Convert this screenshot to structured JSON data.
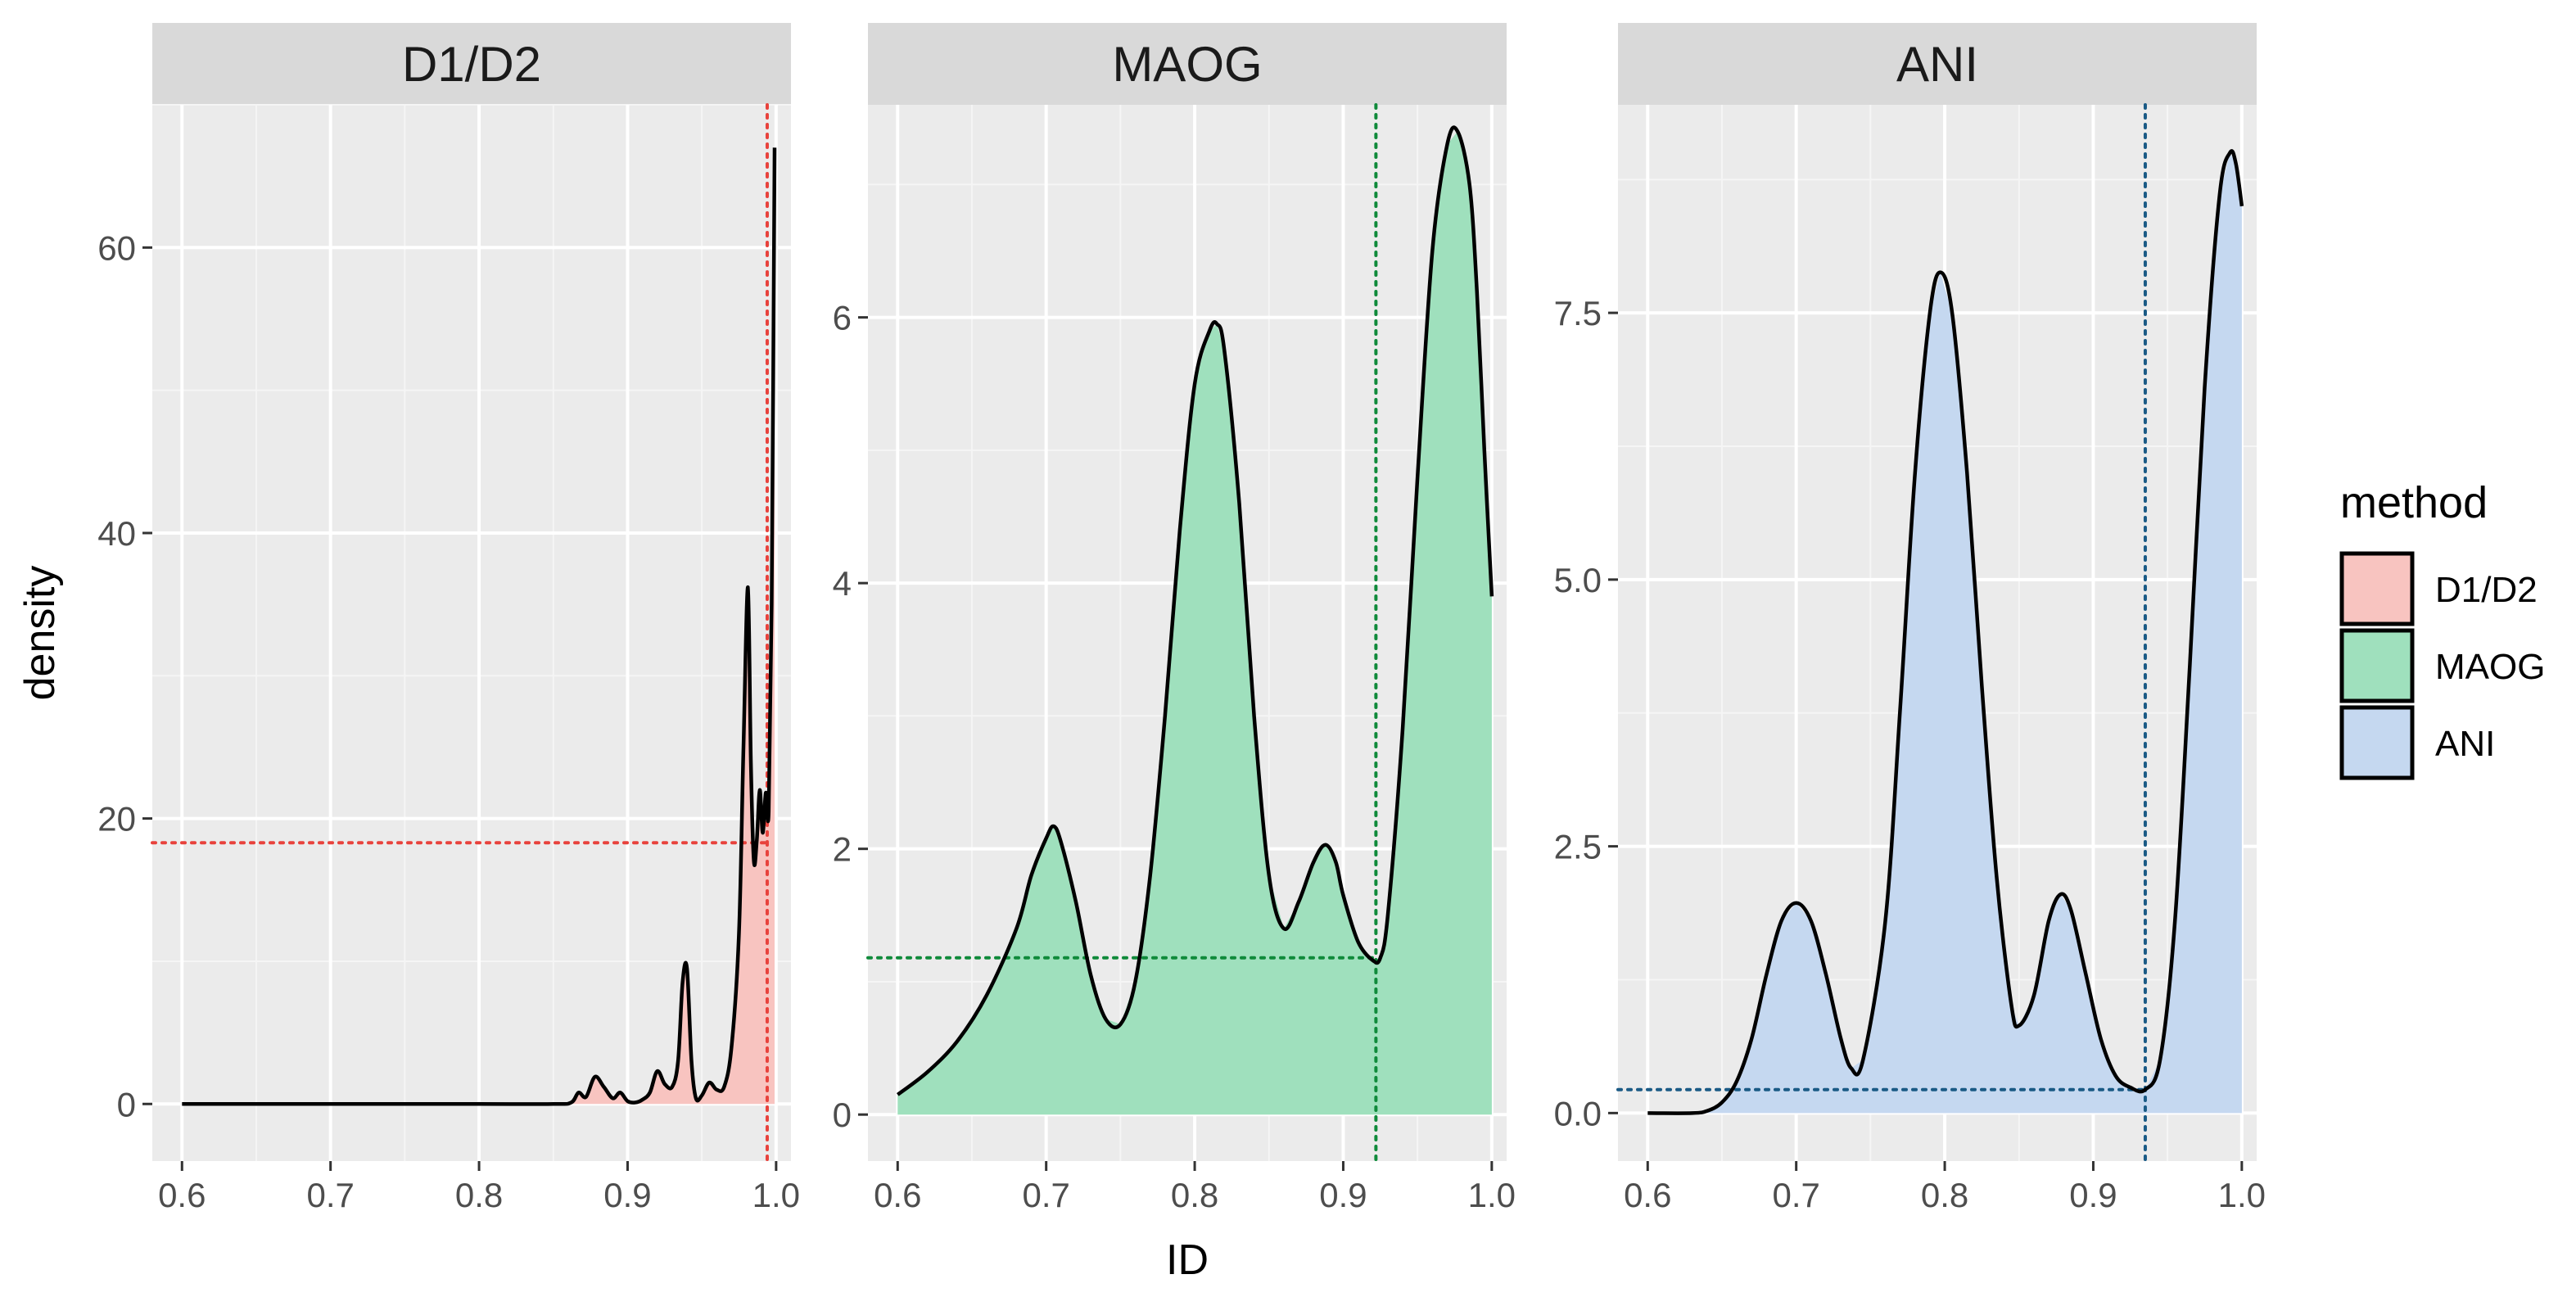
{
  "chart_data": {
    "type": "area",
    "xlabel": "ID",
    "ylabel": "density",
    "legend": {
      "title": "method",
      "placement": "right",
      "entries": [
        "D1/D2",
        "MAOG",
        "ANI"
      ]
    },
    "colors": {
      "D1/D2": "#f8c4c0",
      "MAOG": "#9fe0bd",
      "ANI": "#c5d8f0",
      "D1/D2_line": "#e8423c",
      "MAOG_line": "#0f8a3a",
      "ANI_line": "#1a5a85",
      "panel_bg": "#ebebeb",
      "strip_bg": "#d9d9d9",
      "grid": "#ffffff"
    },
    "grid": true,
    "panels": [
      {
        "label": "D1/D2",
        "xlim": [
          0.58,
          1.01
        ],
        "ylim": [
          -4,
          70
        ],
        "x_ticks": [
          0.6,
          0.7,
          0.8,
          0.9,
          1.0
        ],
        "x_tick_labels": [
          "0.6",
          "0.7",
          "0.8",
          "0.9",
          "1.0"
        ],
        "y_ticks": [
          0,
          20,
          40,
          60
        ],
        "y_tick_labels": [
          "0",
          "20",
          "40",
          "60"
        ],
        "fill_from_x": 0.6,
        "ref_x": 0.994,
        "ref_y": 18.3,
        "x": [
          0.6,
          0.7,
          0.8,
          0.85,
          0.862,
          0.867,
          0.872,
          0.878,
          0.884,
          0.89,
          0.895,
          0.9,
          0.905,
          0.91,
          0.915,
          0.92,
          0.925,
          0.93,
          0.934,
          0.937,
          0.94,
          0.943,
          0.946,
          0.95,
          0.955,
          0.96,
          0.965,
          0.97,
          0.975,
          0.978,
          0.981,
          0.983,
          0.985,
          0.987,
          0.989,
          0.991,
          0.993,
          0.995,
          0.997,
          0.999
        ],
        "y": [
          0,
          0,
          0,
          0,
          0.1,
          0.8,
          0.5,
          1.9,
          1.2,
          0.4,
          0.8,
          0.2,
          0.1,
          0.3,
          0.8,
          2.3,
          1.4,
          1.2,
          3.0,
          8.5,
          9.5,
          3.0,
          0.4,
          0.6,
          1.5,
          1.0,
          1.2,
          4.0,
          12.0,
          25.0,
          36.2,
          24.0,
          17.0,
          18.5,
          22.0,
          19.0,
          21.8,
          20.5,
          35.0,
          67.0
        ]
      },
      {
        "label": "MAOG",
        "xlim": [
          0.58,
          1.01
        ],
        "ylim": [
          -0.35,
          7.6
        ],
        "x_ticks": [
          0.6,
          0.7,
          0.8,
          0.9,
          1.0
        ],
        "x_tick_labels": [
          "0.6",
          "0.7",
          "0.8",
          "0.9",
          "1.0"
        ],
        "y_ticks": [
          0,
          2,
          4,
          6
        ],
        "y_tick_labels": [
          "0",
          "2",
          "4",
          "6"
        ],
        "fill_from_x": 0.6,
        "ref_x": 0.922,
        "ref_y": 1.18,
        "x": [
          0.6,
          0.62,
          0.64,
          0.66,
          0.68,
          0.69,
          0.7,
          0.705,
          0.71,
          0.72,
          0.73,
          0.74,
          0.75,
          0.76,
          0.77,
          0.78,
          0.79,
          0.8,
          0.81,
          0.815,
          0.82,
          0.83,
          0.84,
          0.85,
          0.86,
          0.87,
          0.88,
          0.888,
          0.895,
          0.9,
          0.91,
          0.92,
          0.925,
          0.93,
          0.94,
          0.95,
          0.96,
          0.97,
          0.977,
          0.985,
          0.99,
          0.995,
          1.0
        ],
        "y": [
          0.15,
          0.32,
          0.55,
          0.9,
          1.4,
          1.8,
          2.08,
          2.17,
          2.05,
          1.6,
          1.05,
          0.72,
          0.68,
          1.0,
          1.8,
          3.0,
          4.4,
          5.5,
          5.9,
          5.95,
          5.75,
          4.6,
          3.0,
          1.8,
          1.4,
          1.6,
          1.9,
          2.03,
          1.9,
          1.65,
          1.3,
          1.16,
          1.18,
          1.5,
          2.9,
          4.8,
          6.5,
          7.3,
          7.4,
          7.0,
          6.2,
          5.0,
          3.9
        ]
      },
      {
        "label": "ANI",
        "xlim": [
          0.58,
          1.01
        ],
        "ylim": [
          -0.45,
          9.45
        ],
        "x_ticks": [
          0.6,
          0.7,
          0.8,
          0.9,
          1.0
        ],
        "x_tick_labels": [
          "0.6",
          "0.7",
          "0.8",
          "0.9",
          "1.0"
        ],
        "y_ticks": [
          0.0,
          2.5,
          5.0,
          7.5
        ],
        "y_tick_labels": [
          "0.0",
          "2.5",
          "5.0",
          "7.5"
        ],
        "fill_from_x": 0.64,
        "ref_x": 0.935,
        "ref_y": 0.22,
        "x": [
          0.6,
          0.63,
          0.64,
          0.65,
          0.66,
          0.67,
          0.68,
          0.69,
          0.7,
          0.71,
          0.72,
          0.73,
          0.737,
          0.745,
          0.76,
          0.77,
          0.78,
          0.79,
          0.797,
          0.805,
          0.815,
          0.825,
          0.835,
          0.845,
          0.85,
          0.86,
          0.87,
          0.878,
          0.885,
          0.895,
          0.905,
          0.915,
          0.925,
          0.935,
          0.945,
          0.955,
          0.965,
          0.975,
          0.985,
          0.992,
          0.996,
          1.0
        ],
        "y": [
          0,
          0,
          0.02,
          0.1,
          0.3,
          0.7,
          1.3,
          1.8,
          1.97,
          1.8,
          1.3,
          0.7,
          0.42,
          0.5,
          1.8,
          3.8,
          6.0,
          7.5,
          7.88,
          7.5,
          6.0,
          4.0,
          2.2,
          1.0,
          0.82,
          1.1,
          1.8,
          2.05,
          1.9,
          1.3,
          0.7,
          0.35,
          0.24,
          0.22,
          0.5,
          1.8,
          4.2,
          6.8,
          8.6,
          9.0,
          8.9,
          8.5
        ]
      }
    ]
  }
}
